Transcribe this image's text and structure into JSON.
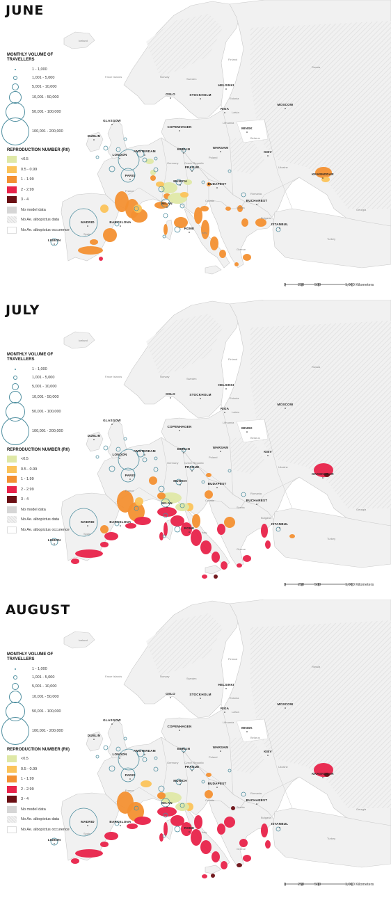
{
  "panels": [
    {
      "month": "JUNE",
      "key": "june"
    },
    {
      "month": "JULY",
      "key": "july"
    },
    {
      "month": "AUGUST",
      "key": "august"
    }
  ],
  "legend": {
    "volume_title": "MONTHLY VOLUME OF TRAVELLERS",
    "volume_classes": [
      "1 - 1,000",
      "1,001 - 5,000",
      "5,001 - 10,000",
      "10,001 - 50,000",
      "50,001 - 100,000",
      "100,001 - 200,000"
    ],
    "r0_title": "REPRODUCTION NUMBER (R0)",
    "r0_classes": [
      {
        "label": "<0.5",
        "color": "#dfe8a6"
      },
      {
        "label": "0.5 - 0.99",
        "color": "#fbc35a"
      },
      {
        "label": "1 - 1.99",
        "color": "#f39032"
      },
      {
        "label": "2 - 2.99",
        "color": "#e8234a"
      },
      {
        "label": "3 - 4",
        "color": "#6b0f14"
      },
      {
        "label": "No model data",
        "color": "#d6d6d6"
      },
      {
        "label": "No Ae. albopictus data",
        "color": "hatch"
      },
      {
        "label": "No Ae. albopictus occurence",
        "color": "#ffffff"
      }
    ]
  },
  "scale_bar": {
    "ticks": [
      "0",
      "250",
      "500",
      "1,000 Kilometers"
    ]
  },
  "cities": [
    "OSLO",
    "STOCKHOLM",
    "HELSINKI",
    "MOSCOW",
    "RIGA",
    "MINSK",
    "DUBLIN",
    "COPENHAGEN",
    "GLASGOW",
    "LONDON",
    "AMSTERDAM",
    "BERLIN",
    "WARSAW",
    "KIEV",
    "PARIS",
    "PRAGUE",
    "MUNICH",
    "BUDAPEST",
    "KRASNODAR",
    "MILAN",
    "BUCHAREST",
    "ISTANBUL",
    "BARCELONA",
    "ROME",
    "MADRID",
    "LISBON"
  ],
  "countries": [
    "Iceland",
    "Faroe Islands",
    "Norway",
    "Sweden",
    "Finland",
    "Russia",
    "Estonia",
    "Latvia",
    "Lithuania",
    "Belarus",
    "Ukraine",
    "Poland",
    "Germany",
    "France",
    "Spain",
    "Italy",
    "Romania",
    "Bulgaria",
    "Turkey",
    "Georgia",
    "Greece",
    "Serbia",
    "Croatia",
    "Czech Republic"
  ],
  "colors": {
    "land": "#f1f1f1",
    "border": "#c9c9c9",
    "ring": "#4f8fa0",
    "hatch": "#dcdcdc"
  }
}
